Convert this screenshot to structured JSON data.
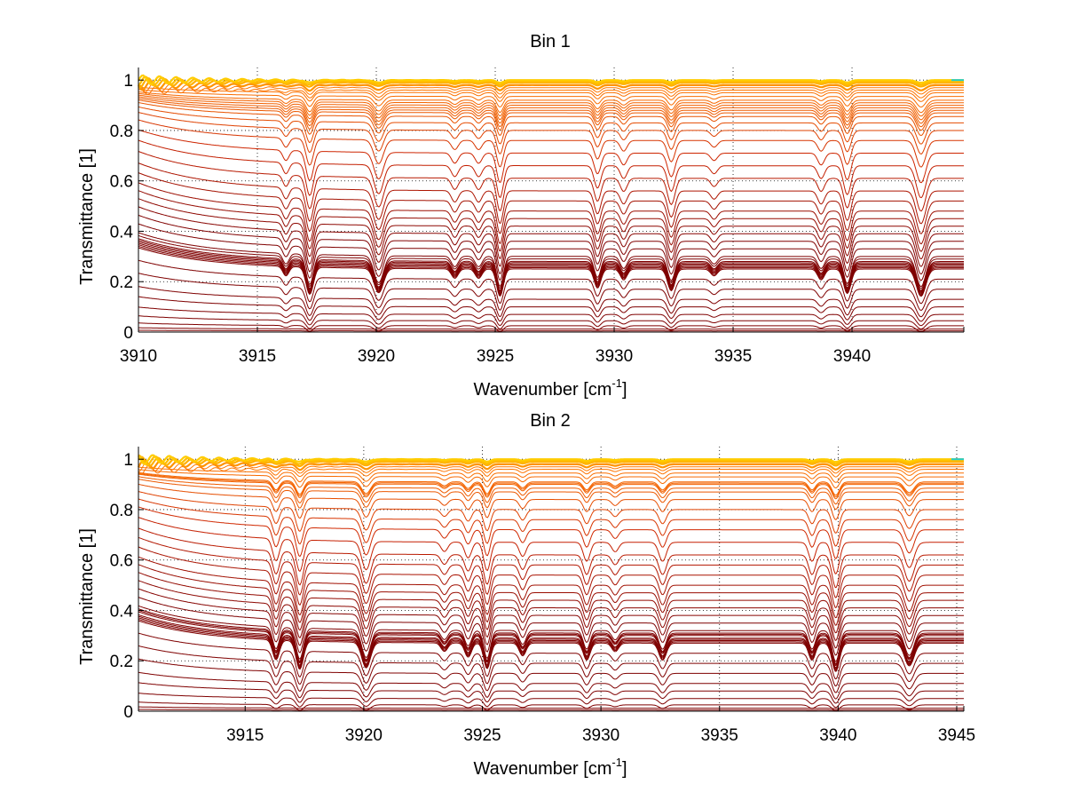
{
  "colors": {
    "background": "#ffffff",
    "axis": "#000000",
    "grid": "#000000",
    "series_dark": "#7f0000",
    "series_mid": "#cc2200",
    "series_orange": "#ff7700",
    "series_yellow": "#ffcc00",
    "series_cyan": "#22cccc"
  },
  "chart_data": [
    {
      "type": "line",
      "title": "Bin 1",
      "xlabel": "Wavenumber [cm-1]",
      "xlabel_parts": {
        "base": "Wavenumber [cm",
        "sup": "-1",
        "close": "]"
      },
      "ylabel": "Transmittance [1]",
      "xlim": [
        3910,
        3944.7
      ],
      "ylim": [
        0,
        1.05
      ],
      "xticks": [
        3910,
        3915,
        3920,
        3925,
        3930,
        3935,
        3940
      ],
      "xticklabels": [
        "3910",
        "3915",
        "3920",
        "3925",
        "3930",
        "3935",
        "3940"
      ],
      "yticks": [
        0,
        0.2,
        0.4,
        0.6,
        0.8,
        1
      ],
      "yticklabels": [
        "0",
        "0.2",
        "0.4",
        "0.6",
        "0.8",
        "1"
      ],
      "grid": true,
      "grid_style": "dotted",
      "series_description": "many transmittance spectra, colored dark red (low transmittance) to orange/yellow (near 1)",
      "baseline_levels": [
        0.005,
        0.012,
        0.025,
        0.045,
        0.07,
        0.1,
        0.13,
        0.17,
        0.21,
        0.25,
        0.255,
        0.26,
        0.265,
        0.27,
        0.275,
        0.28,
        0.29,
        0.3,
        0.33,
        0.36,
        0.39,
        0.42,
        0.45,
        0.48,
        0.52,
        0.56,
        0.61,
        0.66,
        0.71,
        0.76,
        0.8,
        0.83,
        0.855,
        0.87,
        0.88,
        0.89,
        0.9,
        0.91,
        0.92,
        0.935,
        0.95,
        0.96,
        0.97,
        0.98,
        0.99,
        0.995,
        1.0
      ],
      "absorption_lines": [
        {
          "x": 3916.2,
          "depth": 0.35,
          "width": 0.18
        },
        {
          "x": 3917.2,
          "depth": 1.0,
          "width": 0.22
        },
        {
          "x": 3920.1,
          "depth": 0.9,
          "width": 0.28
        },
        {
          "x": 3923.3,
          "depth": 0.35,
          "width": 0.2
        },
        {
          "x": 3924.3,
          "depth": 0.35,
          "width": 0.2
        },
        {
          "x": 3925.2,
          "depth": 1.0,
          "width": 0.2
        },
        {
          "x": 3929.3,
          "depth": 0.7,
          "width": 0.2
        },
        {
          "x": 3930.4,
          "depth": 0.4,
          "width": 0.2
        },
        {
          "x": 3932.4,
          "depth": 0.8,
          "width": 0.22
        },
        {
          "x": 3934.2,
          "depth": 0.25,
          "width": 0.2
        },
        {
          "x": 3938.7,
          "depth": 0.4,
          "width": 0.2
        },
        {
          "x": 3939.8,
          "depth": 0.9,
          "width": 0.22
        },
        {
          "x": 3942.9,
          "depth": 1.0,
          "width": 0.28
        }
      ]
    },
    {
      "type": "line",
      "title": "Bin 2",
      "xlabel": "Wavenumber [cm-1]",
      "xlabel_parts": {
        "base": "Wavenumber [cm",
        "sup": "-1",
        "close": "]"
      },
      "ylabel": "Transmittance [1]",
      "xlim": [
        3910.5,
        3945.3
      ],
      "ylim": [
        0,
        1.05
      ],
      "xticks": [
        3915,
        3920,
        3925,
        3930,
        3935,
        3940,
        3945
      ],
      "xticklabels": [
        "3915",
        "3920",
        "3925",
        "3930",
        "3935",
        "3940",
        "3945"
      ],
      "yticks": [
        0,
        0.2,
        0.4,
        0.6,
        0.8,
        1
      ],
      "yticklabels": [
        "0",
        "0.2",
        "0.4",
        "0.6",
        "0.8",
        "1"
      ],
      "grid": true,
      "grid_style": "dotted",
      "series_description": "many transmittance spectra, colored dark red (low transmittance) to orange/yellow (near 1)",
      "baseline_levels": [
        0.005,
        0.012,
        0.025,
        0.05,
        0.08,
        0.11,
        0.15,
        0.19,
        0.23,
        0.27,
        0.275,
        0.28,
        0.285,
        0.29,
        0.3,
        0.305,
        0.31,
        0.32,
        0.35,
        0.38,
        0.41,
        0.44,
        0.47,
        0.5,
        0.54,
        0.58,
        0.62,
        0.67,
        0.72,
        0.76,
        0.8,
        0.84,
        0.87,
        0.885,
        0.9,
        0.905,
        0.91,
        0.93,
        0.945,
        0.96,
        0.97,
        0.98,
        0.99,
        0.995,
        1.0
      ],
      "absorption_lines": [
        {
          "x": 3916.3,
          "depth": 0.7,
          "width": 0.2
        },
        {
          "x": 3917.3,
          "depth": 1.0,
          "width": 0.22
        },
        {
          "x": 3920.1,
          "depth": 0.9,
          "width": 0.26
        },
        {
          "x": 3923.4,
          "depth": 0.3,
          "width": 0.2
        },
        {
          "x": 3924.4,
          "depth": 0.5,
          "width": 0.2
        },
        {
          "x": 3925.2,
          "depth": 0.9,
          "width": 0.2
        },
        {
          "x": 3926.7,
          "depth": 0.45,
          "width": 0.2
        },
        {
          "x": 3929.4,
          "depth": 0.6,
          "width": 0.2
        },
        {
          "x": 3930.6,
          "depth": 0.3,
          "width": 0.2
        },
        {
          "x": 3932.6,
          "depth": 0.6,
          "width": 0.22
        },
        {
          "x": 3938.9,
          "depth": 0.6,
          "width": 0.2
        },
        {
          "x": 3939.9,
          "depth": 1.0,
          "width": 0.22
        },
        {
          "x": 3943.0,
          "depth": 0.8,
          "width": 0.28
        }
      ]
    }
  ]
}
